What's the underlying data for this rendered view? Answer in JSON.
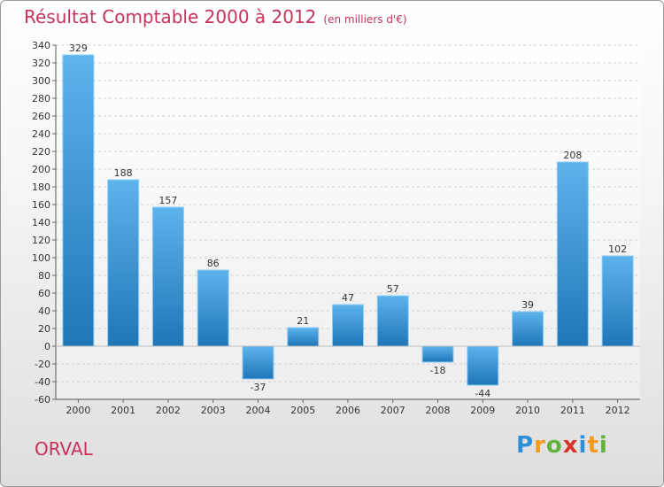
{
  "title": "Résultat Comptable 2000 à 2012",
  "subtitle": "(en milliers d'€)",
  "commune": "ORVAL",
  "logo": {
    "letters": [
      "P",
      "r",
      "o",
      "x",
      "i",
      "t",
      "i"
    ],
    "colors": [
      "#2f8fd8",
      "#f39a1e",
      "#62b33a",
      "#d9342b",
      "#2f8fd8",
      "#f39a1e",
      "#62b33a"
    ]
  },
  "colors": {
    "bar_light": "#5db3ec",
    "bar_dark": "#1f76b8",
    "title": "#c8325a"
  },
  "chart_data": {
    "type": "bar",
    "title": "Résultat Comptable 2000 à 2012",
    "subtitle": "(en milliers d'€)",
    "categories": [
      "2000",
      "2001",
      "2002",
      "2003",
      "2004",
      "2005",
      "2006",
      "2007",
      "2008",
      "2009",
      "2010",
      "2011",
      "2012"
    ],
    "values": [
      329,
      188,
      157,
      86,
      -37,
      21,
      47,
      57,
      -18,
      -44,
      39,
      208,
      102
    ],
    "labels": [
      "329",
      "188",
      "157",
      "86",
      "-37",
      "21",
      "47",
      "57",
      "-18",
      "-44",
      "39",
      "208",
      "102"
    ],
    "ylim": [
      -60,
      340
    ],
    "yticks": [
      -60,
      -40,
      -20,
      0,
      20,
      40,
      60,
      80,
      100,
      120,
      140,
      160,
      180,
      200,
      220,
      240,
      260,
      280,
      300,
      320,
      340
    ],
    "xlabel": "",
    "ylabel": "",
    "grid": true
  }
}
